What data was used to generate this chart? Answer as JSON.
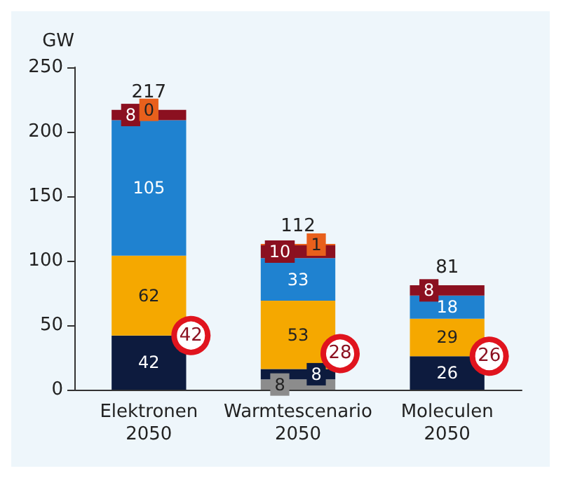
{
  "chart_data": {
    "type": "bar",
    "stacked": true,
    "ylabel": "GW",
    "categories": [
      "Elektronen\n2050",
      "Warmtescenario\n2050",
      "Moleculen\n2050"
    ],
    "ylim": [
      0,
      250
    ],
    "yticks": [
      0,
      50,
      100,
      150,
      200,
      250
    ],
    "grid": false,
    "series": [
      {
        "color": "#8c8c8c",
        "values": [
          null,
          8,
          null
        ],
        "value_labels": [
          null,
          "8",
          null
        ]
      },
      {
        "color": "#0d1b3e",
        "values": [
          42,
          8,
          26
        ],
        "value_labels": [
          "42",
          "8",
          "26"
        ]
      },
      {
        "color": "#f5a800",
        "values": [
          62,
          53,
          29
        ],
        "value_labels": [
          "62",
          "53",
          "29"
        ]
      },
      {
        "color": "#1f82d0",
        "values": [
          105,
          33,
          18
        ],
        "value_labels": [
          "105",
          "33",
          "18"
        ]
      },
      {
        "color": "#8b1020",
        "values": [
          8,
          10,
          8
        ],
        "value_labels": [
          "8",
          "10",
          "8"
        ]
      },
      {
        "color": "#e8601c",
        "values": [
          0,
          1,
          null
        ],
        "value_labels": [
          "0",
          "1",
          null
        ]
      },
      {
        "type": "scatter",
        "marker": "circle",
        "color": "#e0141e",
        "x": [
          "Elektronen\n2050",
          "Warmtescenario\n2050",
          "Moleculen\n2050"
        ],
        "values": [
          42,
          28,
          26
        ],
        "value_labels": [
          "42",
          "28",
          "26"
        ]
      }
    ],
    "totals": [
      "217",
      "112",
      "81"
    ]
  }
}
